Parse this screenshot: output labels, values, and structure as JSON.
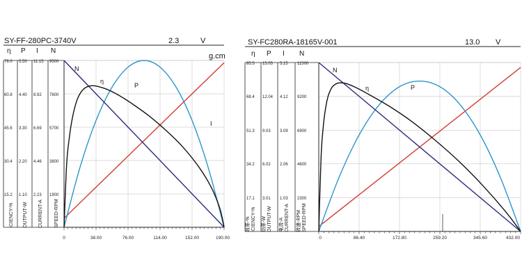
{
  "chart_data": [
    {
      "type": "line",
      "title": "SY-FF-280PC-3740V",
      "voltage_value": "2.3",
      "voltage_unit": "V",
      "x_unit": "g.cm",
      "column_headers": [
        "η",
        "P",
        "I",
        "N"
      ],
      "xlim": [
        0,
        190
      ],
      "x_ticks": [
        "0",
        "38.00",
        "76.00",
        "114.00",
        "152.00",
        "190.00"
      ],
      "y_columns": [
        {
          "name": "efficiency",
          "ticks": [
            "76.0",
            "60.8",
            "45.6",
            "30.4",
            "15.2"
          ],
          "max": 76.0,
          "vlabel": "ICIENCY-%"
        },
        {
          "name": "output",
          "ticks": [
            "5.50",
            "4.40",
            "3.30",
            "2.20",
            "1.10"
          ],
          "max": 5.5,
          "vlabel": "OUTPUT-W"
        },
        {
          "name": "current",
          "ticks": [
            "11.15",
            "8.92",
            "6.69",
            "4.46",
            "2.23"
          ],
          "max": 11.15,
          "vlabel": "CURRENT-A"
        },
        {
          "name": "speed",
          "ticks": [
            "9500",
            "7600",
            "5700",
            "3800",
            "1900"
          ],
          "max": 9500,
          "vlabel": "SPEED-RPM"
        }
      ],
      "series": [
        {
          "label": "N",
          "color": "#2a2a7a",
          "axis": "speed",
          "x": [
            0,
            190
          ],
          "y": [
            9500,
            0
          ]
        },
        {
          "label": "η",
          "color": "#111111",
          "axis": "efficiency",
          "x": [
            0,
            3,
            6,
            10,
            15,
            20,
            25,
            30,
            34,
            40,
            50,
            60,
            70,
            80,
            100,
            120,
            140,
            160,
            175,
            185,
            190
          ],
          "y": [
            0,
            28,
            40,
            50,
            57.5,
            61.5,
            63.5,
            64.3,
            64.5,
            64.2,
            63,
            61.2,
            59,
            56.5,
            51,
            44.5,
            37,
            27.5,
            18,
            8.5,
            0
          ]
        },
        {
          "label": "P",
          "color": "#2b95c8",
          "axis": "output",
          "x": [
            0,
            19,
            38,
            57,
            76,
            95,
            114,
            133,
            152,
            171,
            190
          ],
          "y": [
            0,
            1.98,
            3.52,
            4.62,
            5.28,
            5.5,
            5.28,
            4.62,
            3.52,
            1.98,
            0
          ]
        },
        {
          "label": "I",
          "color": "#d23a2e",
          "axis": "current",
          "x": [
            0,
            190
          ],
          "y": [
            0.6,
            11.0
          ]
        }
      ]
    },
    {
      "type": "line",
      "title": "SY-FC280RA-18165V-001",
      "voltage_value": "13.0",
      "voltage_unit": "V",
      "x_unit": "",
      "column_headers": [
        "η",
        "P",
        "I",
        "N"
      ],
      "xlim": [
        0,
        432
      ],
      "x_ticks": [
        "0",
        "86.40",
        "172.80",
        "259.20",
        "345.60",
        "432.00"
      ],
      "y_columns": [
        {
          "name": "efficiency",
          "ticks": [
            "85.5",
            "68.4",
            "51.3",
            "34.2",
            "17.1"
          ],
          "max": 85.5,
          "vlabel": "效率-%\nICIENCY-%"
        },
        {
          "name": "output",
          "ticks": [
            "15.05",
            "12.04",
            "9.03",
            "6.02",
            "3.01"
          ],
          "max": 15.05,
          "vlabel": "功率-W\nOUTPUT-W"
        },
        {
          "name": "current",
          "ticks": [
            "5.15",
            "4.12",
            "3.09",
            "2.06",
            "1.03"
          ],
          "max": 5.15,
          "vlabel": "电流-A\nCURRENT-A"
        },
        {
          "name": "speed",
          "ticks": [
            "11500",
            "9200",
            "6900",
            "4600",
            "2300"
          ],
          "max": 11500,
          "vlabel": "转速-RPM\nSPEED-RPM"
        }
      ],
      "series": [
        {
          "label": "N",
          "color": "#2a2a7a",
          "axis": "speed",
          "x": [
            0,
            432
          ],
          "y": [
            11500,
            0
          ]
        },
        {
          "label": "η",
          "color": "#111111",
          "axis": "efficiency",
          "x": [
            0,
            5,
            10,
            15,
            20,
            25,
            30,
            40,
            50,
            60,
            80,
            100,
            150,
            200,
            250,
            300,
            350,
            400,
            432
          ],
          "y": [
            0,
            38,
            54,
            63,
            68.5,
            71.5,
            73.5,
            75,
            75.2,
            74.8,
            72.8,
            70.3,
            63.5,
            55.5,
            46,
            35.5,
            23.5,
            10,
            0
          ]
        },
        {
          "label": "P",
          "color": "#2b95c8",
          "axis": "output",
          "x": [
            0,
            43.2,
            86.4,
            129.6,
            172.8,
            216,
            259.2,
            302.4,
            345.6,
            388.8,
            432
          ],
          "y": [
            0,
            4.8,
            8.6,
            11.3,
            12.9,
            13.4,
            12.9,
            11.3,
            8.6,
            4.8,
            0
          ]
        },
        {
          "label": "I",
          "color": "#d23a2e",
          "axis": "current",
          "x": [
            0,
            432
          ],
          "y": [
            0.15,
            5.0
          ]
        }
      ]
    }
  ]
}
